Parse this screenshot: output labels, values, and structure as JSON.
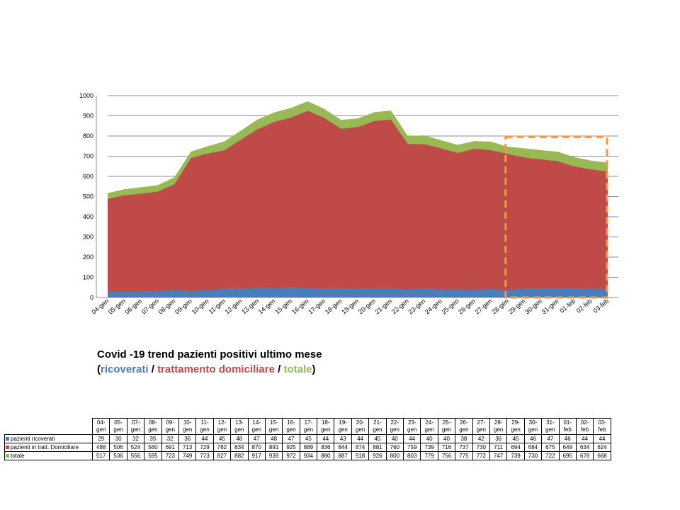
{
  "chart_data": {
    "type": "area",
    "stacked": true,
    "categories": [
      "04-gen",
      "05-gen",
      "06-gen",
      "07-gen",
      "08-gen",
      "09-gen",
      "10-gen",
      "11-gen",
      "12-gen",
      "13-gen",
      "14-gen",
      "15-gen",
      "16-gen",
      "17-gen",
      "18-gen",
      "19-gen",
      "20-gen",
      "21-gen",
      "22-gen",
      "23-gen",
      "24-gen",
      "25-gen",
      "26-gen",
      "27-gen",
      "28-gen",
      "29-gen",
      "30-gen",
      "31-gen",
      "01-feb",
      "02-feb",
      "03-feb"
    ],
    "series": [
      {
        "name": "pazienti ricoverati",
        "color": "#4a7ebb",
        "values": [
          29,
          30,
          30,
          32,
          35,
          32,
          36,
          44,
          45,
          48,
          47,
          48,
          47,
          45,
          44,
          43,
          44,
          45,
          40,
          44,
          40,
          40,
          38,
          42,
          36,
          45,
          46,
          47,
          46,
          44,
          44
        ]
      },
      {
        "name": "pazienti in tratt. Domiciliare",
        "color": "#be4b48",
        "values": [
          488,
          506,
          514,
          524,
          560,
          691,
          713,
          729,
          782,
          834,
          870,
          891,
          925,
          889,
          836,
          844,
          874,
          881,
          760,
          759,
          739,
          716,
          737,
          730,
          711,
          694,
          684,
          675,
          649,
          634,
          624
        ]
      },
      {
        "name": "totale",
        "color": "#98b954",
        "values": [
          517,
          536,
          546,
          556,
          595,
          723,
          749,
          773,
          827,
          882,
          917,
          939,
          972,
          934,
          880,
          887,
          918,
          926,
          800,
          803,
          779,
          756,
          775,
          772,
          747,
          739,
          730,
          722,
          695,
          678,
          668
        ]
      }
    ],
    "ylim": [
      0,
      1000
    ],
    "yticks": [
      "0",
      "100",
      "200",
      "300",
      "400",
      "500",
      "600",
      "700",
      "800",
      "900",
      "1000"
    ],
    "grid": true,
    "highlight": {
      "from": "28-gen",
      "to": "03-feb",
      "y_top": 795,
      "color": "#f79646",
      "style": "dashed"
    }
  },
  "caption": {
    "title": "Covid -19 trend pazienti positivi ultimo mese",
    "open": "(",
    "ricoverati": "ricoverati",
    "sep1": " / ",
    "trattamento": "trattamento domiciliare",
    "sep2": " / ",
    "totale": "totale",
    "close": ")"
  },
  "table": {
    "columns": [
      "04-gen",
      "05-gen",
      "07-gen",
      "08-gen",
      "09-gen",
      "10-gen",
      "11-gen",
      "12-gen",
      "13-gen",
      "14-gen",
      "15-gen",
      "16-gen",
      "17-gen",
      "18-gen",
      "19-gen",
      "20-gen",
      "21-gen",
      "22-gen",
      "23-gen",
      "24-gen",
      "25-gen",
      "26-gen",
      "27-gen",
      "28-gen",
      "29-gen",
      "30-gen",
      "31-gen",
      "01-feb",
      "02-feb",
      "03-feb"
    ],
    "rows": [
      {
        "label": "pazienti ricoverati",
        "color": "#4a7ebb",
        "values": [
          "29",
          "30",
          "32",
          "35",
          "32",
          "36",
          "44",
          "45",
          "48",
          "47",
          "48",
          "47",
          "45",
          "44",
          "43",
          "44",
          "45",
          "40",
          "44",
          "40",
          "40",
          "38",
          "42",
          "36",
          "45",
          "46",
          "47",
          "46",
          "44",
          "44"
        ]
      },
      {
        "label": "pazienti in tratt. Domiciliare",
        "color": "#be4b48",
        "values": [
          "488",
          "506",
          "524",
          "560",
          "691",
          "713",
          "729",
          "782",
          "834",
          "870",
          "891",
          "925",
          "889",
          "836",
          "844",
          "874",
          "881",
          "760",
          "759",
          "739",
          "716",
          "737",
          "730",
          "711",
          "694",
          "684",
          "675",
          "649",
          "634",
          "624"
        ]
      },
      {
        "label": "totale",
        "color": "#98b954",
        "values": [
          "517",
          "536",
          "556",
          "595",
          "723",
          "749",
          "773",
          "827",
          "882",
          "917",
          "939",
          "972",
          "934",
          "880",
          "887",
          "918",
          "926",
          "800",
          "803",
          "779",
          "756",
          "775",
          "772",
          "747",
          "739",
          "730",
          "722",
          "695",
          "678",
          "668"
        ]
      }
    ]
  }
}
